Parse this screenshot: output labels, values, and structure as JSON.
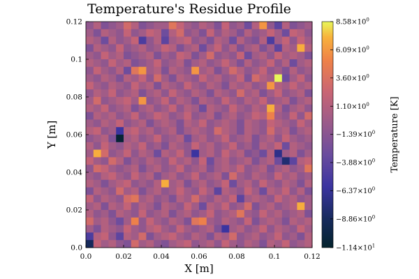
{
  "chart_data": {
    "type": "heatmap",
    "title": "Temperature's Residue Profile",
    "xlabel": "X [m]",
    "ylabel": "Y [m]",
    "xlim": [
      0.0,
      0.12
    ],
    "ylim": [
      0.0,
      0.12
    ],
    "x_ticks": [
      "0.0",
      "0.02",
      "0.04",
      "0.06",
      "0.08",
      "0.1",
      "0.12"
    ],
    "y_ticks": [
      "0.0",
      "0.02",
      "0.04",
      "0.06",
      "0.08",
      "0.1",
      "0.12"
    ],
    "grid": false,
    "colorbar": {
      "label": "Temperature [K]",
      "min": -11.4,
      "max": 8.58,
      "colormap": "thermal",
      "ticks": [
        {
          "value": 8.58,
          "mantissa": "8.58×10",
          "exp": "0"
        },
        {
          "value": 6.09,
          "mantissa": "6.09×10",
          "exp": "0"
        },
        {
          "value": 3.6,
          "mantissa": "3.60×10",
          "exp": "0"
        },
        {
          "value": 1.1,
          "mantissa": "1.10×10",
          "exp": "0"
        },
        {
          "value": -1.39,
          "mantissa": "−1.39×10",
          "exp": "0"
        },
        {
          "value": -3.88,
          "mantissa": "−3.88×10",
          "exp": "0"
        },
        {
          "value": -6.37,
          "mantissa": "−6.37×10",
          "exp": "0"
        },
        {
          "value": -8.86,
          "mantissa": "−8.86×10",
          "exp": "0"
        },
        {
          "value": -11.4,
          "mantissa": "−1.14×10",
          "exp": "1"
        }
      ]
    },
    "grid_size": [
      30,
      30
    ],
    "z_rows_top_to_bottom": [
      [
        -1,
        1,
        -2,
        -1,
        0,
        3,
        1,
        -2,
        -1,
        0,
        0,
        4,
        2,
        0,
        -1,
        1,
        0,
        -2,
        2,
        -1,
        0,
        -3,
        1,
        6,
        -1,
        -4,
        1,
        -2,
        -1,
        0
      ],
      [
        0,
        -2,
        1,
        0,
        -1,
        2,
        -1,
        0,
        2,
        1,
        -3,
        1,
        3,
        -1,
        0,
        -2,
        2,
        -1,
        1,
        0,
        -2,
        1,
        -1,
        0,
        2,
        0,
        -3,
        2,
        1,
        -1
      ],
      [
        1,
        0,
        -3,
        1,
        -1,
        0,
        2,
        -5,
        -1,
        1,
        -4,
        0,
        1,
        2,
        -1,
        0,
        -2,
        1,
        0,
        -3,
        1,
        -1,
        -2,
        1,
        -5,
        0,
        2,
        -1,
        2,
        0
      ],
      [
        -2,
        1,
        0,
        -1,
        2,
        -1,
        0,
        1,
        -1,
        0,
        2,
        1,
        -2,
        0,
        1,
        -3,
        0,
        2,
        -1,
        1,
        -2,
        0,
        1,
        -2,
        0,
        -4,
        1,
        0,
        7,
        1
      ],
      [
        0,
        -1,
        2,
        0,
        1,
        -2,
        -1,
        0,
        1,
        -2,
        0,
        -1,
        2,
        1,
        -2,
        0,
        3,
        -1,
        0,
        -1,
        2,
        -3,
        0,
        1,
        -1,
        2,
        0,
        1,
        0,
        -2
      ],
      [
        1,
        0,
        -1,
        2,
        0,
        1,
        -2,
        -1,
        0,
        2,
        -1,
        0,
        1,
        -2,
        0,
        1,
        -1,
        0,
        2,
        0,
        -2,
        1,
        -1,
        0,
        2,
        -1,
        1,
        -3,
        0,
        1
      ],
      [
        -1,
        2,
        0,
        -1,
        1,
        -3,
        4,
        6,
        0,
        1,
        -2,
        1,
        0,
        -1,
        6,
        0,
        1,
        -2,
        0,
        3,
        1,
        -1,
        0,
        2,
        -1,
        0,
        -2,
        1,
        -1,
        0
      ],
      [
        0,
        -1,
        1,
        0,
        -2,
        1,
        0,
        2,
        -1,
        3,
        0,
        -2,
        1,
        0,
        -1,
        2,
        0,
        1,
        -1,
        0,
        2,
        -2,
        3,
        1,
        0,
        9,
        -3,
        0,
        2,
        -1
      ],
      [
        2,
        0,
        -1,
        1,
        0,
        -1,
        2,
        0,
        1,
        -2,
        1,
        0,
        -1,
        2,
        0,
        -1,
        1,
        0,
        -2,
        1,
        0,
        1,
        -1,
        0,
        6,
        1,
        0,
        2,
        0,
        1
      ],
      [
        -1,
        1,
        0,
        2,
        -1,
        0,
        1,
        -2,
        0,
        1,
        -1,
        2,
        0,
        -1,
        1,
        0,
        -2,
        1,
        0,
        -1,
        3,
        0,
        1,
        -2,
        0,
        2,
        -1,
        0,
        1,
        -2
      ],
      [
        0,
        3,
        -1,
        0,
        1,
        2,
        0,
        6,
        -1,
        0,
        2,
        -1,
        1,
        0,
        -2,
        1,
        0,
        -1,
        2,
        0,
        -1,
        1,
        0,
        2,
        -1,
        0,
        1,
        -2,
        0,
        1
      ],
      [
        1,
        0,
        2,
        -1,
        0,
        1,
        -2,
        0,
        1,
        -1,
        0,
        2,
        -1,
        1,
        0,
        -3,
        1,
        0,
        -1,
        2,
        0,
        -1,
        1,
        0,
        7,
        1,
        -2,
        0,
        1,
        -1
      ],
      [
        -2,
        1,
        0,
        1,
        -1,
        0,
        2,
        -1,
        0,
        2,
        1,
        -1,
        0,
        2,
        -1,
        0,
        1,
        -2,
        0,
        1,
        -1,
        0,
        2,
        1,
        5,
        0,
        -1,
        2,
        -1,
        3
      ],
      [
        0,
        -1,
        1,
        0,
        2,
        -1,
        0,
        1,
        -2,
        0,
        1,
        0,
        -2,
        1,
        0,
        2,
        -1,
        0,
        1,
        0,
        -2,
        1,
        0,
        -1,
        2,
        1,
        0,
        -1,
        2,
        0
      ],
      [
        1,
        2,
        -1,
        0,
        -6,
        1,
        2,
        0,
        1,
        -1,
        0,
        1,
        -2,
        0,
        1,
        0,
        -1,
        3,
        1,
        0,
        -2,
        1,
        0,
        -1,
        3,
        0,
        1,
        -2,
        0,
        1
      ],
      [
        -1,
        0,
        1,
        -2,
        -11,
        0,
        1,
        -1,
        0,
        2,
        -1,
        0,
        1,
        -3,
        0,
        1,
        -1,
        0,
        2,
        -1,
        0,
        1,
        -2,
        0,
        1,
        -1,
        2,
        0,
        -1,
        0
      ],
      [
        1,
        -1,
        2,
        0,
        -1,
        1,
        0,
        2,
        -1,
        0,
        -2,
        1,
        0,
        -1,
        2,
        0,
        1,
        -1,
        0,
        2,
        -1,
        0,
        -2,
        1,
        0,
        2,
        -3,
        1,
        0,
        -1
      ],
      [
        0,
        7,
        3,
        -1,
        0,
        2,
        -1,
        1,
        0,
        -3,
        1,
        0,
        2,
        -1,
        -6,
        0,
        1,
        -1,
        2,
        0,
        1,
        -2,
        -1,
        -3,
        1,
        -7,
        0,
        1,
        -2,
        0
      ],
      [
        2,
        0,
        -1,
        3,
        1,
        -2,
        0,
        -1,
        1,
        0,
        -1,
        2,
        0,
        1,
        -1,
        2,
        -3,
        0,
        1,
        -1,
        0,
        1,
        -2,
        0,
        1,
        -3,
        -8,
        -4,
        1,
        2
      ],
      [
        -1,
        3,
        2,
        0,
        -1,
        0,
        1,
        -2,
        0,
        1,
        -1,
        0,
        2,
        -1,
        0,
        1,
        -2,
        0,
        1,
        0,
        2,
        -1,
        0,
        1,
        -2,
        0,
        1,
        -1,
        0,
        4
      ],
      [
        0,
        -1,
        1,
        2,
        0,
        -1,
        2,
        0,
        1,
        -2,
        0,
        1,
        -1,
        0,
        2,
        -1,
        0,
        1,
        -2,
        3,
        0,
        -1,
        1,
        0,
        -1,
        2,
        0,
        1,
        -1,
        0
      ],
      [
        1,
        0,
        -2,
        0,
        1,
        2,
        -1,
        0,
        -1,
        1,
        7,
        0,
        1,
        -2,
        0,
        1,
        -1,
        0,
        2,
        -3,
        0,
        1,
        -1,
        2,
        0,
        -1,
        1,
        0,
        -2,
        1
      ],
      [
        -2,
        1,
        0,
        -1,
        3,
        0,
        1,
        -2,
        0,
        1,
        -1,
        0,
        2,
        0,
        -1,
        2,
        0,
        -4,
        1,
        0,
        -1,
        2,
        0,
        -3,
        1,
        0,
        2,
        -1,
        1,
        -2
      ],
      [
        2,
        -1,
        1,
        0,
        -1,
        3,
        4,
        0,
        1,
        -1,
        0,
        -2,
        1,
        0,
        3,
        0,
        -1,
        1,
        0,
        2,
        -4,
        0,
        1,
        0,
        -1,
        2,
        0,
        1,
        -1,
        0
      ],
      [
        0,
        1,
        -2,
        1,
        0,
        2,
        -1,
        1,
        0,
        -2,
        1,
        0,
        -1,
        2,
        0,
        -3,
        1,
        0,
        2,
        -1,
        0,
        3,
        -2,
        0,
        1,
        -1,
        0,
        1,
        7,
        0
      ],
      [
        1,
        -1,
        0,
        -2,
        1,
        0,
        -1,
        2,
        -1,
        0,
        1,
        -2,
        0,
        1,
        -1,
        0,
        2,
        -1,
        0,
        1,
        4,
        0,
        -1,
        2,
        0,
        1,
        -1,
        0,
        1,
        -2
      ],
      [
        3,
        0,
        1,
        -1,
        -3,
        0,
        5,
        -1,
        2,
        0,
        -1,
        1,
        0,
        -2,
        4,
        5,
        0,
        -1,
        1,
        0,
        -1,
        2,
        -2,
        0,
        1,
        0,
        -2,
        1,
        0,
        1
      ],
      [
        0,
        -2,
        1,
        0,
        -1,
        2,
        0,
        -1,
        1,
        2,
        0,
        -1,
        2,
        0,
        -1,
        0,
        1,
        -2,
        -6,
        0,
        1,
        -1,
        0,
        2,
        -1,
        1,
        0,
        -1,
        2,
        0
      ],
      [
        -5,
        1,
        2,
        -1,
        -4,
        1,
        0,
        3,
        -2,
        0,
        1,
        2,
        0,
        -1,
        1,
        0,
        -2,
        1,
        0,
        3,
        -1,
        0,
        1,
        -1,
        0,
        2,
        -1,
        0,
        -2,
        1
      ],
      [
        -9,
        2,
        0,
        1,
        -1,
        -2,
        3,
        0,
        1,
        -1,
        -2,
        0,
        1,
        2,
        -1,
        0,
        1,
        -1,
        2,
        0,
        -1,
        1,
        0,
        -2,
        1,
        0,
        2,
        -1,
        0,
        1
      ]
    ]
  }
}
